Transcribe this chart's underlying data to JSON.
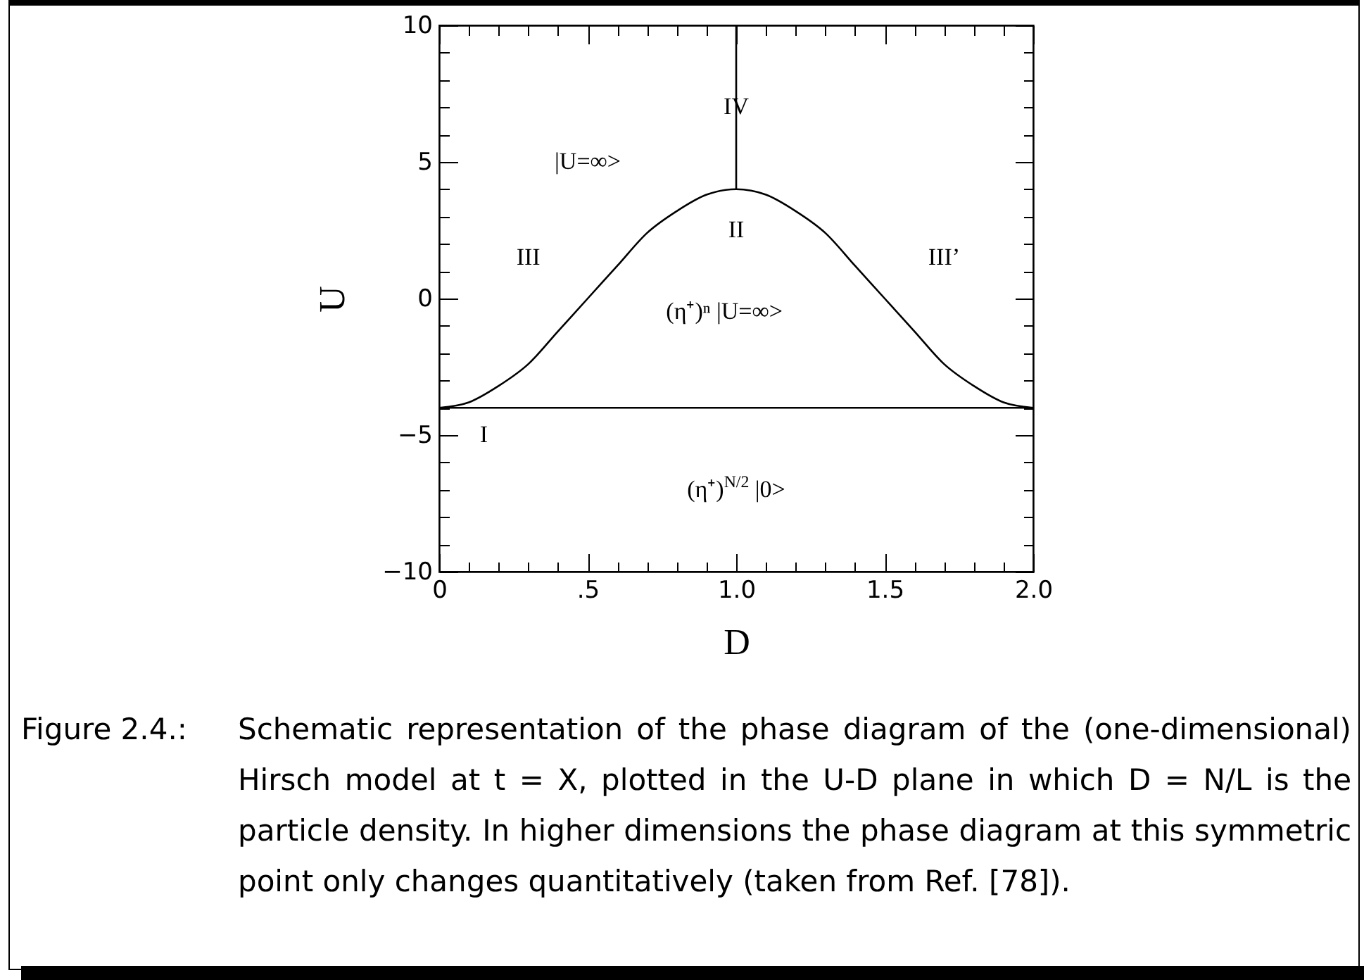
{
  "chart_data": {
    "type": "line",
    "xlabel": "D",
    "ylabel": "U",
    "xlim": [
      0,
      2
    ],
    "ylim": [
      -10,
      10
    ],
    "xticks": [
      0,
      {
        "value": 0.1,
        "label": null
      },
      {
        "value": 0.2,
        "label": null
      },
      {
        "value": 0.3,
        "label": null
      },
      {
        "value": 0.4,
        "label": null
      },
      {
        "value": 0.5,
        "label": ".5"
      },
      {
        "value": 0.6,
        "label": null
      },
      {
        "value": 0.7,
        "label": null
      },
      {
        "value": 0.8,
        "label": null
      },
      {
        "value": 0.9,
        "label": null
      },
      {
        "value": 1,
        "label": "1.0"
      },
      {
        "value": 1.1,
        "label": null
      },
      {
        "value": 1.2,
        "label": null
      },
      {
        "value": 1.3,
        "label": null
      },
      {
        "value": 1.4,
        "label": null
      },
      1.5,
      {
        "value": 1.6,
        "label": null
      },
      {
        "value": 1.7,
        "label": null
      },
      {
        "value": 1.8,
        "label": null
      },
      {
        "value": 1.9,
        "label": null
      },
      {
        "value": 2,
        "label": "2.0"
      }
    ],
    "yticks": [
      {
        "value": -10,
        "label": "−10"
      },
      {
        "value": -9,
        "label": null
      },
      {
        "value": -8,
        "label": null
      },
      {
        "value": -7,
        "label": null
      },
      {
        "value": -6,
        "label": null
      },
      {
        "value": -5,
        "label": "−5"
      },
      {
        "value": -4,
        "label": null
      },
      {
        "value": -3,
        "label": null
      },
      {
        "value": -2,
        "label": null
      },
      {
        "value": -1,
        "label": null
      },
      0,
      {
        "value": 1,
        "label": null
      },
      {
        "value": 2,
        "label": null
      },
      {
        "value": 3,
        "label": null
      },
      {
        "value": 4,
        "label": null
      },
      5,
      {
        "value": 6,
        "label": null
      },
      {
        "value": 7,
        "label": null
      },
      {
        "value": 8,
        "label": null
      },
      {
        "value": 9,
        "label": null
      },
      10
    ],
    "grid": false,
    "line_style": "solid",
    "marker": "none",
    "series": [
      {
        "color": "#000000",
        "x": [
          0,
          0.1,
          0.2,
          0.3,
          0.4,
          0.5,
          0.6,
          0.7,
          0.8,
          0.9,
          1,
          1.1,
          1.2,
          1.3,
          1.4,
          1.5,
          1.6,
          1.7,
          1.8,
          1.9,
          2
        ],
        "values": [
          -4,
          -3.8,
          -3.2,
          -2.4,
          -1.2,
          0,
          1.2,
          2.4,
          3.2,
          3.8,
          4,
          3.8,
          3.2,
          2.4,
          1.2,
          0,
          -1.2,
          -2.4,
          -3.2,
          -3.8,
          -4
        ]
      },
      {
        "color": "#000000",
        "x": [
          1,
          1
        ],
        "values": [
          4,
          10
        ]
      }
    ],
    "ref_lines": [
      {
        "axis": "y",
        "value": -4,
        "color": "#000000"
      }
    ],
    "annotations": [
      {
        "text": "IV",
        "x": 1,
        "y": 7
      },
      "|U=∞>",
      "III",
      "II",
      "III’",
      "(η⁺)ⁿ |U=∞>",
      "I",
      "(η⁺)$^{N/2}$ |0>",
      "Figure 2.4.:",
      "Schematic representation of the phase diagram of the (one-dimensional) Hirsch model at t = X, plotted in the U-D plane in which D = N/L is the particle density. In higher dimensions the phase diagram at this symmetric point only changes quantitatively (taken from Ref. [78])."
    ]
  }
}
